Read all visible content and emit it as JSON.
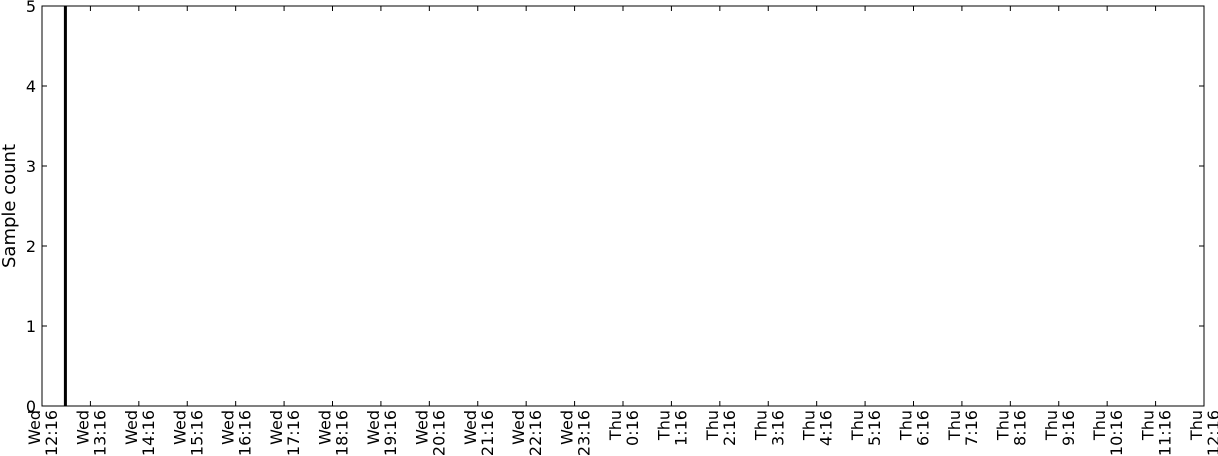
{
  "chart_data": {
    "type": "bar",
    "title": "",
    "xlabel": "",
    "ylabel": "Sample count",
    "ylim": [
      0,
      5
    ],
    "yticks": [
      0,
      1,
      2,
      3,
      4,
      5
    ],
    "xticks": [
      [
        "Wed",
        "12:16"
      ],
      [
        "Wed",
        "13:16"
      ],
      [
        "Wed",
        "14:16"
      ],
      [
        "Wed",
        "15:16"
      ],
      [
        "Wed",
        "16:16"
      ],
      [
        "Wed",
        "17:16"
      ],
      [
        "Wed",
        "18:16"
      ],
      [
        "Wed",
        "19:16"
      ],
      [
        "Wed",
        "20:16"
      ],
      [
        "Wed",
        "21:16"
      ],
      [
        "Wed",
        "22:16"
      ],
      [
        "Wed",
        "23:16"
      ],
      [
        "Thu",
        "0:16"
      ],
      [
        "Thu",
        "1:16"
      ],
      [
        "Thu",
        "2:16"
      ],
      [
        "Thu",
        "3:16"
      ],
      [
        "Thu",
        "4:16"
      ],
      [
        "Thu",
        "5:16"
      ],
      [
        "Thu",
        "6:16"
      ],
      [
        "Thu",
        "7:16"
      ],
      [
        "Thu",
        "8:16"
      ],
      [
        "Thu",
        "9:16"
      ],
      [
        "Thu",
        "10:16"
      ],
      [
        "Thu",
        "11:16"
      ],
      [
        "Thu",
        "12:16"
      ]
    ],
    "bars": [
      {
        "x": "Wed 12:45",
        "value": 5
      }
    ],
    "grid": false,
    "legend": "none",
    "bar_color": "#000000",
    "axis_color": "#000000"
  }
}
